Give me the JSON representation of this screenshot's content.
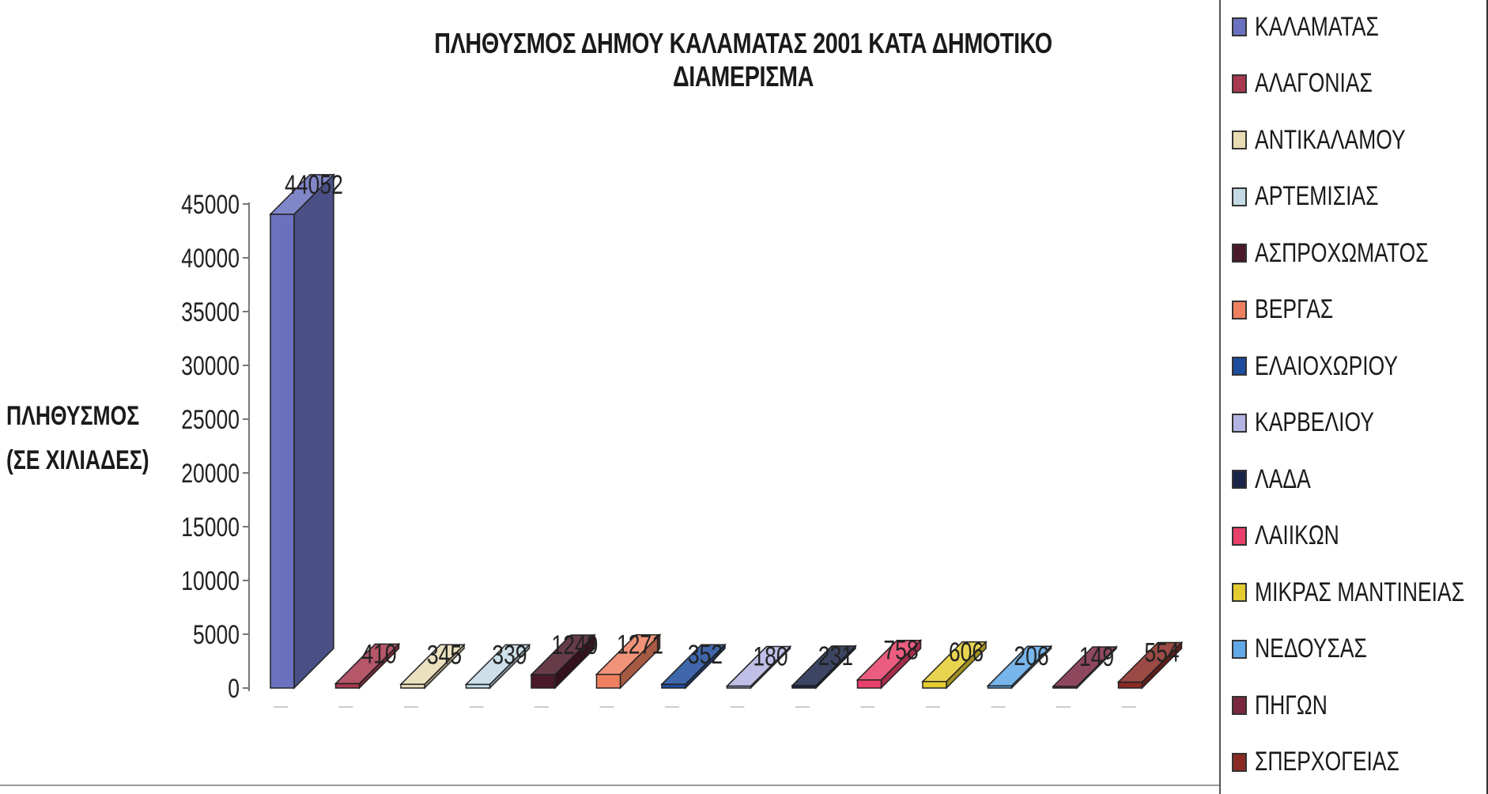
{
  "chart_data": {
    "type": "bar",
    "title": "ΠΛΗΘΥΣΜΟΣ ΔΗΜΟΥ ΚΑΛΑΜΑΤΑΣ 2001 ΚΑΤΑ ΔΗΜΟΤΙΚΟ ΔΙΑΜΕΡΙΣΜΑ",
    "ylabel_lines": [
      "ΠΛΗΘΥΣΜΟΣ",
      "(ΣΕ ΧΙΛΙΑΔΕΣ)"
    ],
    "ylim": [
      0,
      45000
    ],
    "yticks": [
      0,
      5000,
      10000,
      15000,
      20000,
      25000,
      30000,
      35000,
      40000,
      45000
    ],
    "categories": [
      "ΚΑΛΑΜΑΤΑΣ",
      "ΑΛΑΓΟΝΙΑΣ",
      "ΑΝΤΙΚΑΛΑΜΟΥ",
      "ΑΡΤΕΜΙΣΙΑΣ",
      "ΑΣΠΡΟΧΩΜΑΤΟΣ",
      "ΒΕΡΓΑΣ",
      "ΕΛΑΙΟΧΩΡΙΟΥ",
      "ΚΑΡΒΕΛΙΟΥ",
      "ΛΑΔΑ",
      "ΛΑΙΙΚΩΝ",
      "ΜΙΚΡΑΣ ΜΑΝΤΙΝΕΙΑΣ",
      "ΝΕΔΟΥΣΑΣ",
      "ΠΗΓΩΝ",
      "ΣΠΕΡΧΟΓΕΙΑΣ"
    ],
    "values": [
      44052,
      410,
      345,
      339,
      1249,
      1271,
      352,
      180,
      231,
      758,
      606,
      206,
      149,
      554
    ],
    "value_labels": [
      "44052",
      "410",
      "345",
      "339",
      "1249",
      "1271",
      "352",
      "180",
      "231",
      "758",
      "606",
      "206",
      "149",
      "554"
    ],
    "colors": [
      "#6a72c0",
      "#a8384f",
      "#e8dcb4",
      "#c4dbe6",
      "#4a1a28",
      "#ee8060",
      "#1e4c9c",
      "#b4b4e4",
      "#1a2448",
      "#e8406a",
      "#e4cc30",
      "#60a8e8",
      "#7a2840",
      "#8a2a24"
    ],
    "legend_position": "right",
    "grid": false,
    "three_d": true
  }
}
